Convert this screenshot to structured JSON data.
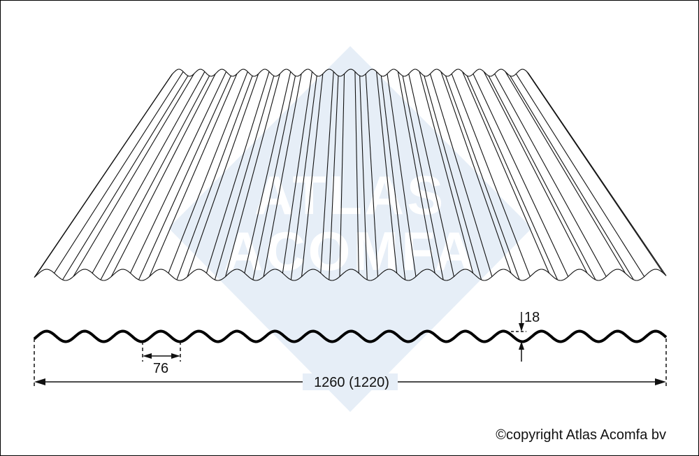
{
  "watermark": {
    "text_line1": "ATLAS",
    "text_line2": "ACOMFA",
    "color": "#e6eef7"
  },
  "dimensions": {
    "pitch": "76",
    "height": "18",
    "width": "1260 (1220)"
  },
  "copyright": "©copyright Atlas Acomfa bv",
  "colors": {
    "line": "#111111",
    "watermark": "#e6eef7"
  }
}
